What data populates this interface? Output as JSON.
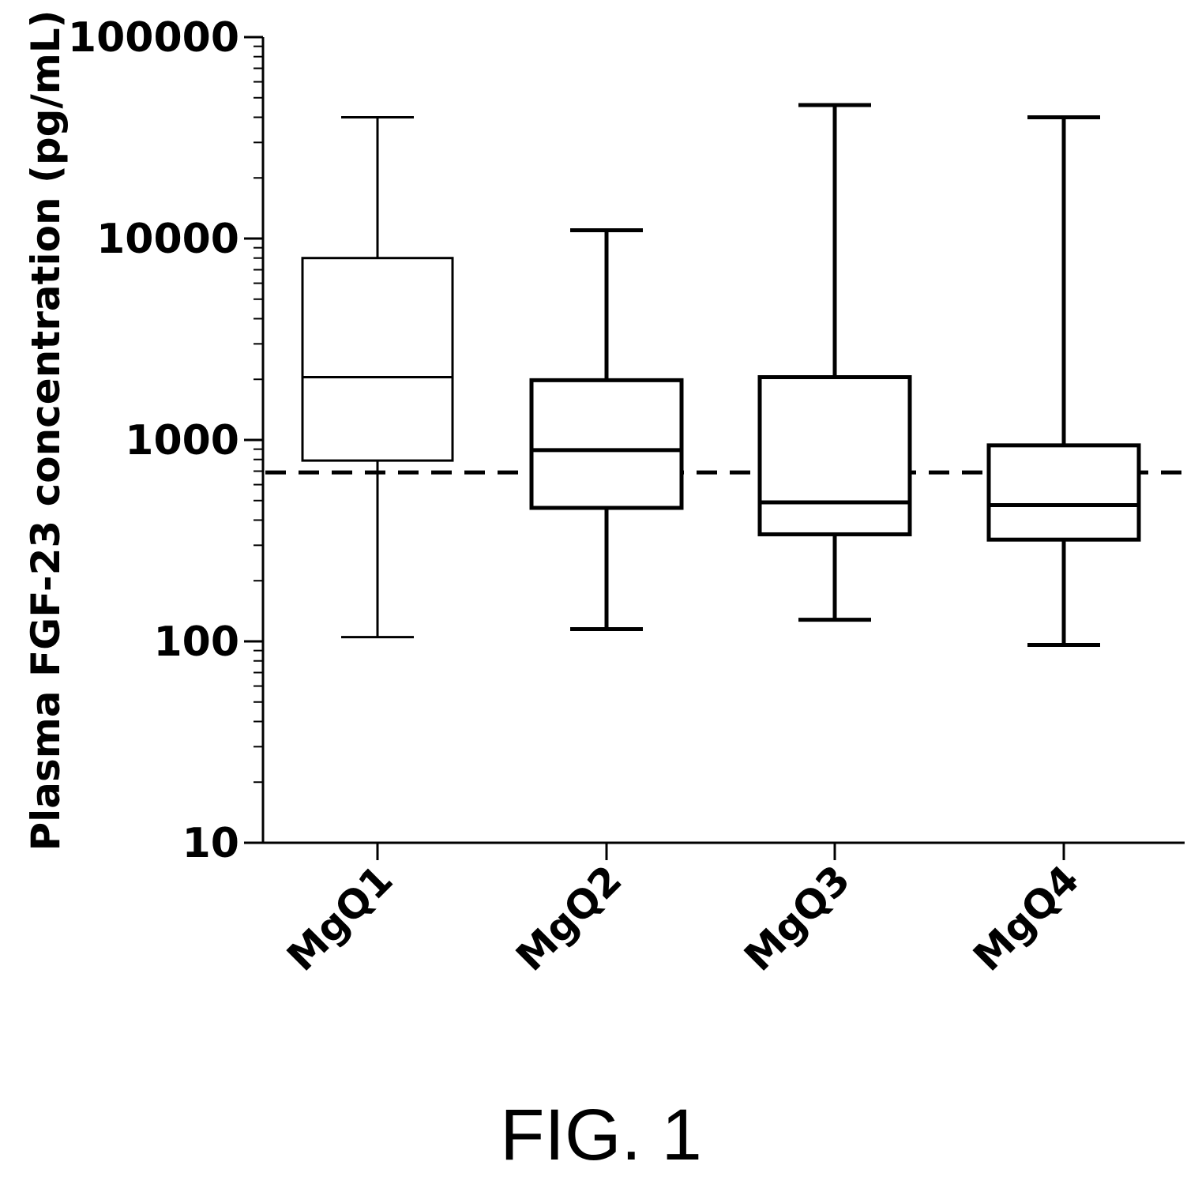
{
  "figure": {
    "caption": "FIG. 1"
  },
  "chart_data": {
    "type": "box",
    "ylabel": "Plasma FGF-23 concentration (pg/mL)",
    "xlabel": "",
    "y_scale": "log",
    "ylim": [
      10,
      100000
    ],
    "y_ticks": [
      10,
      100,
      1000,
      10000,
      100000
    ],
    "y_tick_labels": [
      "10",
      "100",
      "1000",
      "10000",
      "100000"
    ],
    "categories": [
      "MgQ1",
      "MgQ2",
      "MgQ3",
      "MgQ4"
    ],
    "boxes": [
      {
        "category": "MgQ1",
        "min": 105,
        "q1": 790,
        "median": 2050,
        "q3": 8000,
        "max": 40000
      },
      {
        "category": "MgQ2",
        "min": 115,
        "q1": 460,
        "median": 890,
        "q3": 1980,
        "max": 11000
      },
      {
        "category": "MgQ3",
        "min": 128,
        "q1": 340,
        "median": 490,
        "q3": 2050,
        "max": 46000
      },
      {
        "category": "MgQ4",
        "min": 96,
        "q1": 320,
        "median": 475,
        "q3": 940,
        "max": 40000
      }
    ],
    "reference_line": {
      "y": 690,
      "style": "dashed"
    },
    "grid": false,
    "legend": "none"
  }
}
